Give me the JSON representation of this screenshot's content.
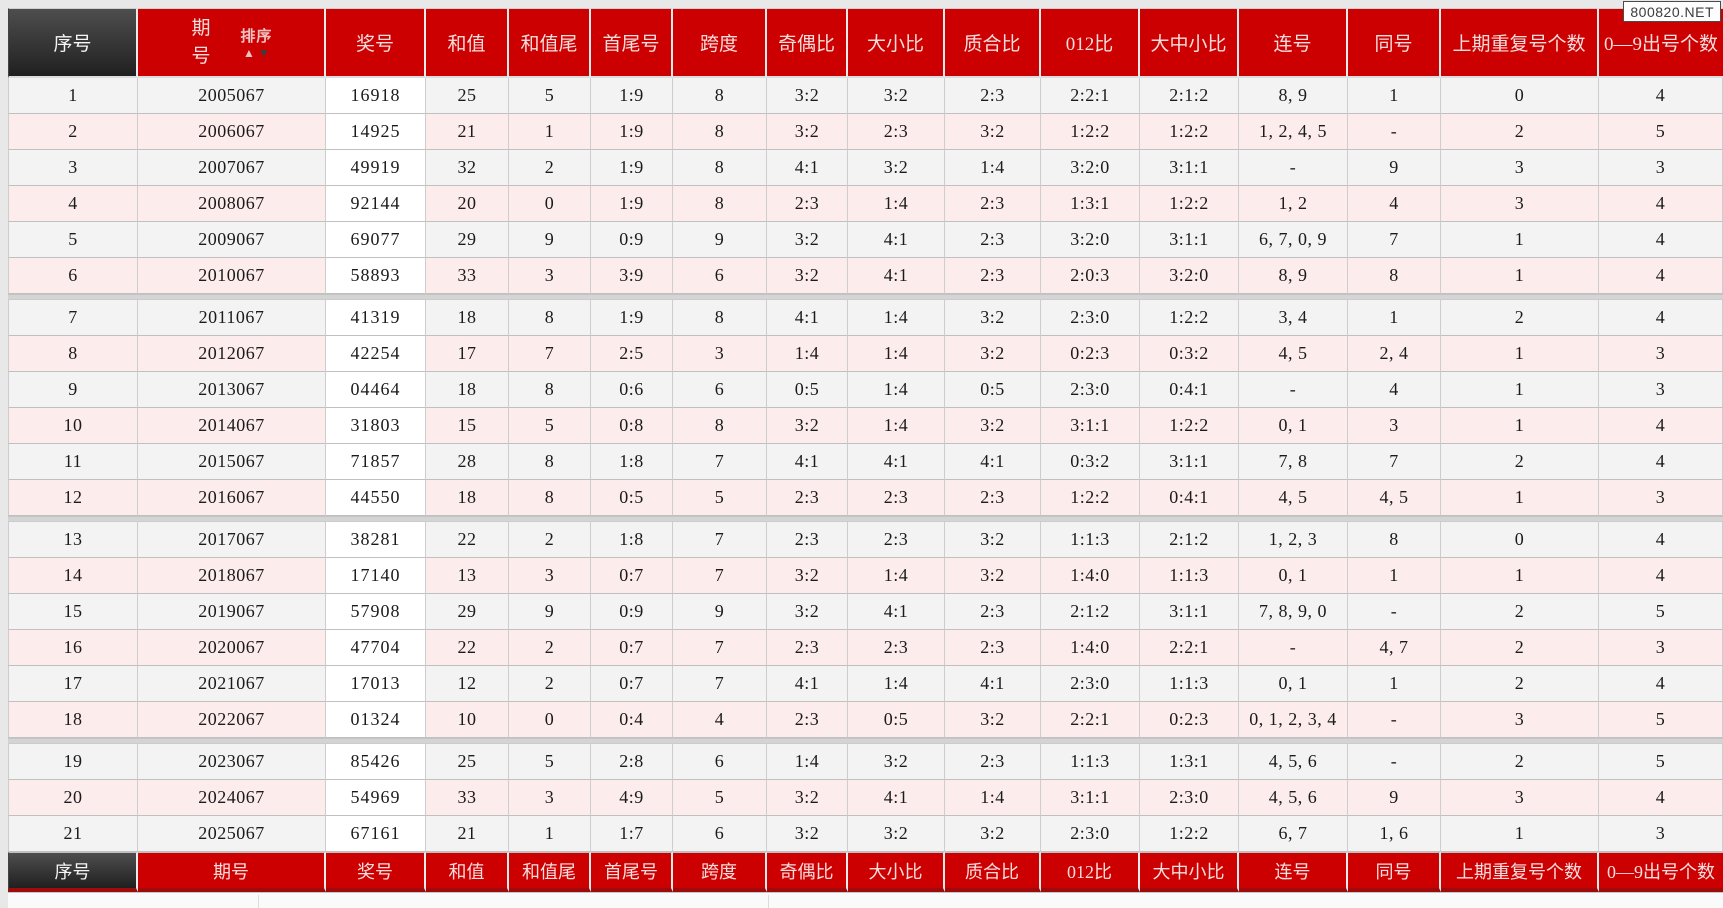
{
  "watermark": "800820.NET",
  "colors": {
    "header_red": "#cc0000",
    "header_text": "#f7dede",
    "header_dark_from": "#4e4e4e",
    "header_dark_to": "#202020",
    "row_gray": "#f3f3f3",
    "row_pink": "#fdecec",
    "prize_white": "#ffffff",
    "footer_accent": "#9e0b0b"
  },
  "sort": {
    "label": "排序",
    "asc_icon": "▲",
    "desc_icon": "▼"
  },
  "table": {
    "columns": [
      {
        "id": "serial",
        "label": "序号"
      },
      {
        "id": "issue",
        "label": "期号"
      },
      {
        "id": "prize",
        "label": "奖号"
      },
      {
        "id": "sum",
        "label": "和值"
      },
      {
        "id": "sum-tail",
        "label": "和值尾"
      },
      {
        "id": "min-max",
        "label": "首尾号"
      },
      {
        "id": "span",
        "label": "跨度"
      },
      {
        "id": "odd-even",
        "label": "奇偶比"
      },
      {
        "id": "big-small",
        "label": "大小比"
      },
      {
        "id": "prime-composite",
        "label": "质合比"
      },
      {
        "id": "012-ratio",
        "label": "012比"
      },
      {
        "id": "big-mid-small",
        "label": "大中小比"
      },
      {
        "id": "consecutive",
        "label": "连号"
      },
      {
        "id": "same-number",
        "label": "同号"
      },
      {
        "id": "repeat-prev",
        "label": "上期重复号个数"
      },
      {
        "id": "digit-count",
        "label": "0—9出号个数"
      }
    ],
    "group_breaks": [
      6,
      12,
      18
    ],
    "rows": [
      [
        "1",
        "2005067",
        "16918",
        "25",
        "5",
        "1:9",
        "8",
        "3:2",
        "3:2",
        "2:3",
        "2:2:1",
        "2:1:2",
        "8, 9",
        "1",
        "0",
        "4"
      ],
      [
        "2",
        "2006067",
        "14925",
        "21",
        "1",
        "1:9",
        "8",
        "3:2",
        "2:3",
        "3:2",
        "1:2:2",
        "1:2:2",
        "1, 2, 4, 5",
        "-",
        "2",
        "5"
      ],
      [
        "3",
        "2007067",
        "49919",
        "32",
        "2",
        "1:9",
        "8",
        "4:1",
        "3:2",
        "1:4",
        "3:2:0",
        "3:1:1",
        "-",
        "9",
        "3",
        "3"
      ],
      [
        "4",
        "2008067",
        "92144",
        "20",
        "0",
        "1:9",
        "8",
        "2:3",
        "1:4",
        "2:3",
        "1:3:1",
        "1:2:2",
        "1, 2",
        "4",
        "3",
        "4"
      ],
      [
        "5",
        "2009067",
        "69077",
        "29",
        "9",
        "0:9",
        "9",
        "3:2",
        "4:1",
        "2:3",
        "3:2:0",
        "3:1:1",
        "6, 7, 0, 9",
        "7",
        "1",
        "4"
      ],
      [
        "6",
        "2010067",
        "58893",
        "33",
        "3",
        "3:9",
        "6",
        "3:2",
        "4:1",
        "2:3",
        "2:0:3",
        "3:2:0",
        "8, 9",
        "8",
        "1",
        "4"
      ],
      [
        "7",
        "2011067",
        "41319",
        "18",
        "8",
        "1:9",
        "8",
        "4:1",
        "1:4",
        "3:2",
        "2:3:0",
        "1:2:2",
        "3, 4",
        "1",
        "2",
        "4"
      ],
      [
        "8",
        "2012067",
        "42254",
        "17",
        "7",
        "2:5",
        "3",
        "1:4",
        "1:4",
        "3:2",
        "0:2:3",
        "0:3:2",
        "4, 5",
        "2, 4",
        "1",
        "3"
      ],
      [
        "9",
        "2013067",
        "04464",
        "18",
        "8",
        "0:6",
        "6",
        "0:5",
        "1:4",
        "0:5",
        "2:3:0",
        "0:4:1",
        "-",
        "4",
        "1",
        "3"
      ],
      [
        "10",
        "2014067",
        "31803",
        "15",
        "5",
        "0:8",
        "8",
        "3:2",
        "1:4",
        "3:2",
        "3:1:1",
        "1:2:2",
        "0, 1",
        "3",
        "1",
        "4"
      ],
      [
        "11",
        "2015067",
        "71857",
        "28",
        "8",
        "1:8",
        "7",
        "4:1",
        "4:1",
        "4:1",
        "0:3:2",
        "3:1:1",
        "7, 8",
        "7",
        "2",
        "4"
      ],
      [
        "12",
        "2016067",
        "44550",
        "18",
        "8",
        "0:5",
        "5",
        "2:3",
        "2:3",
        "2:3",
        "1:2:2",
        "0:4:1",
        "4, 5",
        "4, 5",
        "1",
        "3"
      ],
      [
        "13",
        "2017067",
        "38281",
        "22",
        "2",
        "1:8",
        "7",
        "2:3",
        "2:3",
        "3:2",
        "1:1:3",
        "2:1:2",
        "1, 2, 3",
        "8",
        "0",
        "4"
      ],
      [
        "14",
        "2018067",
        "17140",
        "13",
        "3",
        "0:7",
        "7",
        "3:2",
        "1:4",
        "3:2",
        "1:4:0",
        "1:1:3",
        "0, 1",
        "1",
        "1",
        "4"
      ],
      [
        "15",
        "2019067",
        "57908",
        "29",
        "9",
        "0:9",
        "9",
        "3:2",
        "4:1",
        "2:3",
        "2:1:2",
        "3:1:1",
        "7, 8, 9, 0",
        "-",
        "2",
        "5"
      ],
      [
        "16",
        "2020067",
        "47704",
        "22",
        "2",
        "0:7",
        "7",
        "2:3",
        "2:3",
        "2:3",
        "1:4:0",
        "2:2:1",
        "-",
        "4, 7",
        "2",
        "3"
      ],
      [
        "17",
        "2021067",
        "17013",
        "12",
        "2",
        "0:7",
        "7",
        "4:1",
        "1:4",
        "4:1",
        "2:3:0",
        "1:1:3",
        "0, 1",
        "1",
        "2",
        "4"
      ],
      [
        "18",
        "2022067",
        "01324",
        "10",
        "0",
        "0:4",
        "4",
        "2:3",
        "0:5",
        "3:2",
        "2:2:1",
        "0:2:3",
        "0, 1, 2, 3, 4",
        "-",
        "3",
        "5"
      ],
      [
        "19",
        "2023067",
        "85426",
        "25",
        "5",
        "2:8",
        "6",
        "1:4",
        "3:2",
        "2:3",
        "1:1:3",
        "1:3:1",
        "4, 5, 6",
        "-",
        "2",
        "5"
      ],
      [
        "20",
        "2024067",
        "54969",
        "33",
        "3",
        "4:9",
        "5",
        "3:2",
        "4:1",
        "1:4",
        "3:1:1",
        "2:3:0",
        "4, 5, 6",
        "9",
        "3",
        "4"
      ],
      [
        "21",
        "2025067",
        "67161",
        "21",
        "1",
        "1:7",
        "6",
        "3:2",
        "3:2",
        "3:2",
        "2:3:0",
        "1:2:2",
        "6, 7",
        "1, 6",
        "1",
        "3"
      ]
    ]
  }
}
